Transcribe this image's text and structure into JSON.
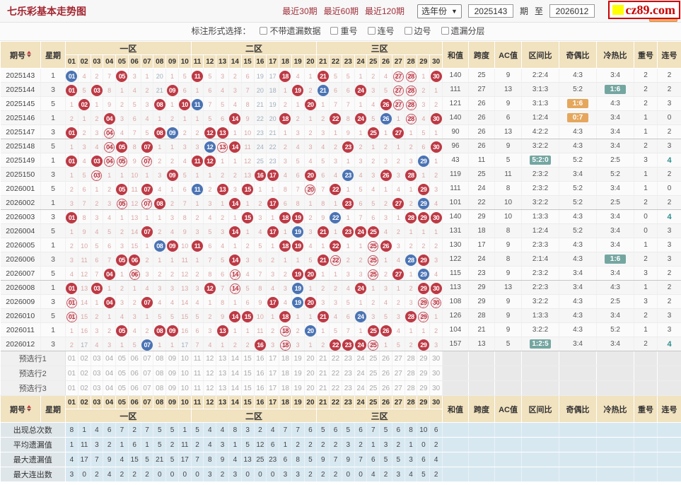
{
  "header": {
    "title": "七乐彩基本走势图",
    "links": [
      "最近30期",
      "最近60期",
      "最近120期"
    ],
    "year_select": "选年份",
    "period_from": "2025143",
    "period_to": "2026012",
    "period_unit": "期",
    "to_label": "至",
    "submit_label": "查看",
    "logo_text": "cz89.com",
    "logo_color": "#CC0000",
    "logo_block_color": "#FFFF00"
  },
  "filter": {
    "label": "标注形式选择：",
    "checkboxes": [
      "不带遗漏数据",
      "重号",
      "连号",
      "边号",
      "遗漏分层"
    ]
  },
  "colors": {
    "ball_red": "#BD3944",
    "ball_blue": "#4A73B4",
    "omission_pink": "#DCA6A6",
    "omission_cold": "#A2AFBE",
    "header_tan": "#F1E2C0",
    "highlight_teal": "#74A6A1",
    "highlight_orange": "#E5A75D",
    "title_red": "#A32732"
  },
  "table": {
    "period_header": "期号",
    "week_header": "星期",
    "zones": [
      {
        "label": "一区",
        "nums": [
          "01",
          "02",
          "03",
          "04",
          "05",
          "06",
          "07",
          "08",
          "09",
          "10"
        ]
      },
      {
        "label": "二区",
        "nums": [
          "11",
          "12",
          "13",
          "14",
          "15",
          "16",
          "17",
          "18",
          "19",
          "20"
        ]
      },
      {
        "label": "三区",
        "nums": [
          "21",
          "22",
          "23",
          "24",
          "25",
          "26",
          "27",
          "28",
          "29",
          "30"
        ]
      }
    ],
    "right_headers": [
      "和值",
      "跨度",
      "AC值",
      "区间比",
      "奇偶比",
      "冷热比",
      "重号",
      "连号"
    ],
    "rows": [
      {
        "p": "2025143",
        "w": "1",
        "c": [
          "B01",
          4,
          2,
          7,
          "R05",
          3,
          1,
          20,
          1,
          5,
          "R11",
          5,
          3,
          2,
          6,
          19,
          17,
          "R18",
          4,
          1,
          "R21",
          5,
          5,
          1,
          2,
          4,
          "H27",
          "H28",
          1,
          "R30"
        ],
        "v": [
          "140",
          "25",
          "9",
          "2:2:4",
          "4:3",
          "3:4",
          "2",
          "2"
        ],
        "m": {}
      },
      {
        "p": "2025144",
        "w": "3",
        "c": [
          "R01",
          5,
          "R03",
          8,
          1,
          4,
          2,
          21,
          "R09",
          6,
          1,
          6,
          4,
          3,
          7,
          20,
          18,
          1,
          "R19",
          2,
          "B21",
          6,
          6,
          "R24",
          3,
          5,
          "H27",
          "H28",
          2,
          1
        ],
        "v": [
          "111",
          "27",
          "13",
          "3:1:3",
          "5:2",
          "1:6",
          "2",
          "2"
        ],
        "m": {
          "5": "bt"
        }
      },
      {
        "p": "2025145",
        "w": "5",
        "c": [
          1,
          "R02",
          1,
          9,
          2,
          5,
          3,
          "R08",
          1,
          "R10",
          "B11",
          7,
          5,
          4,
          8,
          21,
          19,
          2,
          1,
          "R20",
          1,
          7,
          7,
          1,
          4,
          "R26",
          "H27",
          "H28",
          3,
          2
        ],
        "v": [
          "121",
          "26",
          "9",
          "3:1:3",
          "1:6",
          "4:3",
          "2",
          "3"
        ],
        "m": {
          "4": "bo"
        }
      },
      {
        "p": "2025146",
        "w": "1",
        "c": [
          2,
          1,
          2,
          "R04",
          3,
          6,
          4,
          1,
          2,
          1,
          1,
          5,
          6,
          "R14",
          9,
          22,
          20,
          "R18",
          2,
          1,
          2,
          "R22",
          8,
          "R24",
          5,
          "B26",
          1,
          "H28",
          4,
          "R30"
        ],
        "v": [
          "140",
          "26",
          "6",
          "1:2:4",
          "0:7",
          "3:4",
          "1",
          "0"
        ],
        "m": {
          "4": "bo"
        }
      },
      {
        "p": "2025147",
        "w": "3",
        "c": [
          "R01",
          2,
          3,
          "H04",
          4,
          7,
          5,
          "R08",
          "B09",
          2,
          2,
          "R12",
          "R13",
          1,
          10,
          23,
          21,
          1,
          3,
          2,
          3,
          1,
          9,
          1,
          "R25",
          1,
          "R27",
          1,
          5,
          1
        ],
        "v": [
          "90",
          "26",
          "13",
          "4:2:2",
          "4:3",
          "3:4",
          "1",
          "2"
        ],
        "m": {}
      },
      {
        "p": "2025148",
        "w": "5",
        "c": [
          1,
          3,
          4,
          "H04",
          "R05",
          8,
          "R07",
          1,
          1,
          3,
          3,
          "B12",
          "H13",
          "R14",
          11,
          24,
          22,
          2,
          4,
          3,
          4,
          2,
          "R23",
          2,
          1,
          2,
          1,
          2,
          6,
          "R30"
        ],
        "v": [
          "96",
          "26",
          "9",
          "3:2:2",
          "4:3",
          "3:4",
          "2",
          "3"
        ],
        "m": {}
      },
      {
        "p": "2025149",
        "w": "1",
        "c": [
          "R01",
          4,
          "R03",
          "H04",
          "H05",
          9,
          "H07",
          2,
          2,
          4,
          "R11",
          "R12",
          1,
          1,
          12,
          25,
          23,
          3,
          5,
          4,
          5,
          3,
          1,
          3,
          2,
          3,
          2,
          3,
          "B29",
          1
        ],
        "v": [
          "43",
          "11",
          "5",
          "5:2:0",
          "5:2",
          "2:5",
          "3",
          "4"
        ],
        "m": {
          "3": "bt",
          "7": "tt"
        }
      },
      {
        "p": "2025150",
        "w": "3",
        "c": [
          1,
          5,
          "H03",
          1,
          1,
          10,
          1,
          3,
          "R09",
          5,
          1,
          1,
          2,
          2,
          13,
          "R16",
          "R17",
          4,
          6,
          "R20",
          6,
          4,
          "B23",
          4,
          3,
          "R26",
          3,
          "R28",
          1,
          2
        ],
        "v": [
          "119",
          "25",
          "11",
          "2:3:2",
          "3:4",
          "5:2",
          "1",
          "2"
        ],
        "m": {}
      },
      {
        "p": "2026001",
        "w": "5",
        "c": [
          2,
          6,
          1,
          2,
          "R05",
          11,
          "R07",
          4,
          1,
          6,
          "B11",
          2,
          "R13",
          3,
          "R15",
          1,
          1,
          8,
          7,
          "H20",
          7,
          "R22",
          1,
          5,
          4,
          1,
          4,
          1,
          "R29",
          3
        ],
        "v": [
          "111",
          "24",
          "8",
          "2:3:2",
          "5:2",
          "3:4",
          "1",
          "0"
        ],
        "m": {}
      },
      {
        "p": "2026002",
        "w": "1",
        "c": [
          3,
          7,
          2,
          3,
          "H05",
          12,
          "H07",
          "R08",
          2,
          7,
          1,
          3,
          1,
          "R14",
          1,
          2,
          "R17",
          6,
          8,
          1,
          8,
          1,
          "R23",
          6,
          5,
          2,
          "R27",
          2,
          "B29",
          4
        ],
        "v": [
          "101",
          "22",
          "10",
          "3:2:2",
          "5:2",
          "2:5",
          "2",
          "2"
        ],
        "m": {}
      },
      {
        "p": "2026003",
        "w": "3",
        "c": [
          "R01",
          8,
          3,
          4,
          1,
          13,
          1,
          1,
          3,
          8,
          2,
          4,
          2,
          1,
          "R15",
          3,
          1,
          "R18",
          "R19",
          2,
          9,
          "B22",
          1,
          7,
          6,
          3,
          1,
          "R28",
          "R29",
          "R30"
        ],
        "v": [
          "140",
          "29",
          "10",
          "1:3:3",
          "4:3",
          "3:4",
          "0",
          "4"
        ],
        "m": {
          "7": "tt"
        }
      },
      {
        "p": "2026004",
        "w": "5",
        "c": [
          1,
          9,
          4,
          5,
          2,
          14,
          "R07",
          2,
          4,
          9,
          3,
          5,
          3,
          "R14",
          1,
          4,
          "R17",
          1,
          "B19",
          3,
          "R21",
          1,
          "R23",
          "R24",
          "R25",
          4,
          2,
          1,
          1,
          1
        ],
        "v": [
          "131",
          "18",
          "8",
          "1:2:4",
          "5:2",
          "3:4",
          "0",
          "3"
        ],
        "m": {}
      },
      {
        "p": "2026005",
        "w": "1",
        "c": [
          2,
          10,
          5,
          6,
          3,
          15,
          1,
          "B08",
          "R09",
          10,
          "R11",
          6,
          4,
          1,
          2,
          5,
          1,
          "R18",
          "R19",
          4,
          1,
          "R22",
          1,
          1,
          "H25",
          "R26",
          3,
          2,
          2,
          2
        ],
        "v": [
          "130",
          "17",
          "9",
          "2:3:3",
          "4:3",
          "3:4",
          "1",
          "3"
        ],
        "m": {}
      },
      {
        "p": "2026006",
        "w": "3",
        "c": [
          3,
          11,
          6,
          7,
          "R05",
          "R06",
          2,
          1,
          1,
          11,
          1,
          7,
          5,
          "R14",
          3,
          6,
          2,
          1,
          1,
          5,
          "R21",
          "H22",
          2,
          2,
          "H25",
          1,
          4,
          "B28",
          "R29",
          3
        ],
        "v": [
          "122",
          "24",
          "8",
          "2:1:4",
          "4:3",
          "1:6",
          "2",
          "3"
        ],
        "m": {
          "5": "bt"
        }
      },
      {
        "p": "2026007",
        "w": "5",
        "c": [
          4,
          12,
          7,
          "R04",
          1,
          "H06",
          3,
          2,
          2,
          12,
          2,
          8,
          6,
          "H14",
          4,
          7,
          3,
          2,
          "R19",
          "R20",
          1,
          1,
          3,
          3,
          "H25",
          2,
          "R27",
          1,
          "B29",
          4
        ],
        "v": [
          "115",
          "23",
          "9",
          "2:3:2",
          "3:4",
          "3:4",
          "3",
          "2"
        ],
        "m": {}
      },
      {
        "p": "2026008",
        "w": "1",
        "c": [
          "R01",
          13,
          "R03",
          1,
          2,
          1,
          4,
          3,
          3,
          13,
          3,
          "R12",
          7,
          "H14",
          5,
          8,
          4,
          3,
          "B19",
          1,
          2,
          2,
          4,
          "R24",
          1,
          3,
          1,
          2,
          "R29",
          "R30"
        ],
        "v": [
          "113",
          "29",
          "13",
          "2:2:3",
          "3:4",
          "4:3",
          "1",
          "2"
        ],
        "m": {}
      },
      {
        "p": "2026009",
        "w": "3",
        "c": [
          "H01",
          14,
          1,
          "R04",
          3,
          2,
          "R07",
          4,
          4,
          14,
          4,
          1,
          8,
          1,
          6,
          9,
          "R17",
          4,
          "B19",
          "R20",
          3,
          3,
          5,
          1,
          2,
          4,
          2,
          3,
          "H29",
          "H30"
        ],
        "v": [
          "108",
          "29",
          "9",
          "3:2:2",
          "4:3",
          "2:5",
          "3",
          "2"
        ],
        "m": {}
      },
      {
        "p": "2026010",
        "w": "5",
        "c": [
          "H01",
          15,
          2,
          1,
          4,
          3,
          1,
          5,
          5,
          15,
          5,
          2,
          9,
          "R14",
          "R15",
          10,
          1,
          "R18",
          1,
          1,
          "R21",
          4,
          6,
          "B24",
          3,
          5,
          3,
          "R28",
          "H29",
          1
        ],
        "v": [
          "126",
          "28",
          "9",
          "1:3:3",
          "4:3",
          "3:4",
          "2",
          "3"
        ],
        "m": {}
      },
      {
        "p": "2026011",
        "w": "1",
        "c": [
          1,
          16,
          3,
          2,
          "R05",
          4,
          2,
          "R08",
          "R09",
          16,
          6,
          3,
          "R13",
          1,
          1,
          11,
          2,
          "H18",
          2,
          "B20",
          1,
          5,
          7,
          1,
          "R25",
          "R26",
          4,
          1,
          1,
          2
        ],
        "v": [
          "104",
          "21",
          "9",
          "3:2:2",
          "4:3",
          "5:2",
          "1",
          "3"
        ],
        "m": {}
      },
      {
        "p": "2026012",
        "w": "3",
        "c": [
          2,
          17,
          4,
          3,
          1,
          5,
          "B07",
          1,
          1,
          17,
          7,
          4,
          1,
          2,
          2,
          "R16",
          3,
          "H18",
          3,
          1,
          2,
          "R22",
          "R23",
          "R24",
          "H25",
          1,
          5,
          2,
          "R29",
          3
        ],
        "v": [
          "157",
          "13",
          "5",
          "1:2:5",
          "3:4",
          "3:4",
          "2",
          "4"
        ],
        "m": {
          "3": "bt",
          "7": "tt"
        }
      }
    ],
    "preselect_rows": [
      "预选行1",
      "预选行2",
      "预选行3"
    ],
    "stats_rows": [
      {
        "label": "出现总次数",
        "values": [
          8,
          1,
          4,
          6,
          7,
          2,
          7,
          5,
          5,
          1,
          5,
          4,
          4,
          8,
          3,
          2,
          4,
          7,
          7,
          6,
          5,
          6,
          5,
          6,
          7,
          5,
          6,
          8,
          10,
          6
        ]
      },
      {
        "label": "平均遗漏值",
        "values": [
          1,
          11,
          3,
          2,
          1,
          6,
          1,
          5,
          2,
          11,
          2,
          4,
          3,
          1,
          5,
          12,
          6,
          1,
          2,
          2,
          2,
          2,
          3,
          2,
          1,
          3,
          2,
          1,
          0,
          2
        ]
      },
      {
        "label": "最大遗漏值",
        "values": [
          4,
          17,
          7,
          9,
          4,
          15,
          5,
          21,
          5,
          17,
          7,
          8,
          9,
          4,
          13,
          25,
          23,
          6,
          8,
          5,
          9,
          7,
          9,
          7,
          6,
          5,
          5,
          3,
          6,
          4
        ]
      },
      {
        "label": "最大连出数",
        "values": [
          3,
          0,
          2,
          4,
          2,
          2,
          2,
          0,
          0,
          0,
          0,
          3,
          2,
          3,
          0,
          0,
          0,
          3,
          3,
          2,
          2,
          2,
          0,
          0,
          4,
          2,
          3,
          4,
          5,
          2
        ]
      }
    ]
  }
}
